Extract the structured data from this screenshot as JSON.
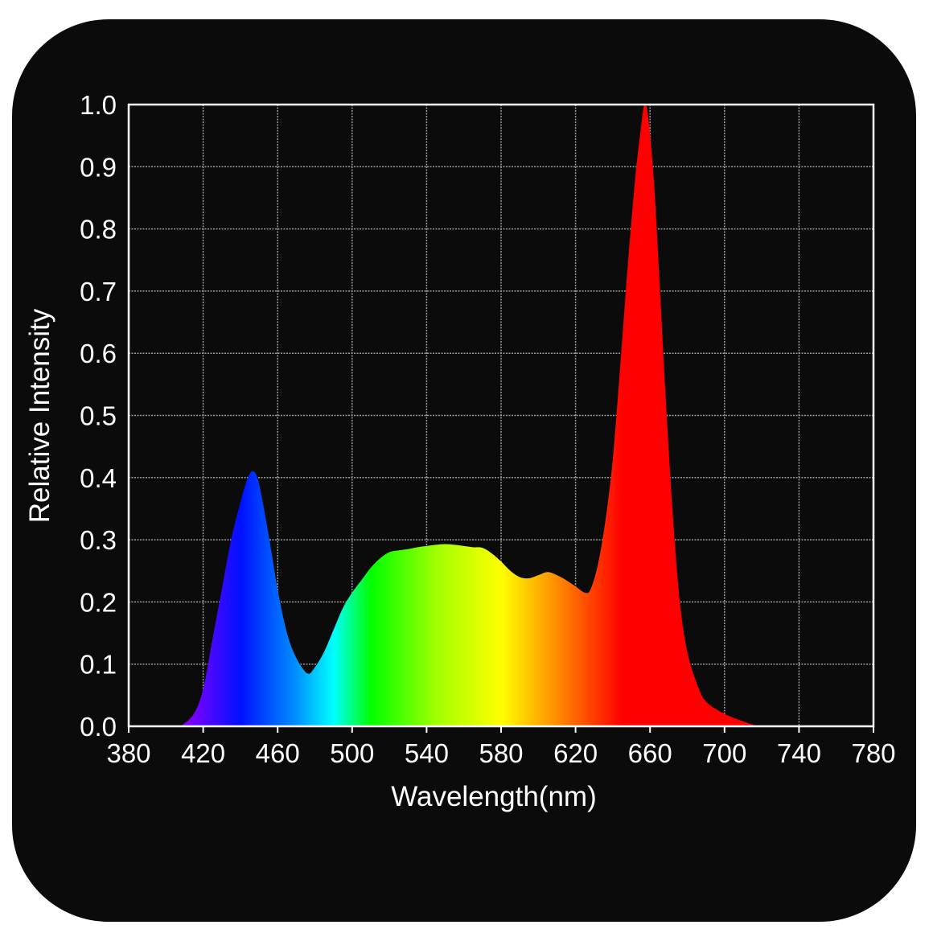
{
  "chart_data": {
    "type": "area",
    "title": "",
    "xlabel": "Wavelength(nm)",
    "ylabel": "Relative Intensity",
    "xlim": [
      380,
      780
    ],
    "ylim": [
      0,
      1.0
    ],
    "xticks": [
      380,
      420,
      460,
      500,
      540,
      580,
      620,
      660,
      700,
      740,
      780
    ],
    "yticks": [
      "0.0",
      "0.1",
      "0.2",
      "0.3",
      "0.4",
      "0.5",
      "0.6",
      "0.7",
      "0.8",
      "0.9",
      "1.0"
    ],
    "grid": true,
    "background": "#0b0b0b",
    "fill": "visible-spectrum gradient",
    "gradient_stops": [
      {
        "nm": 410,
        "color": "#8a00ff"
      },
      {
        "nm": 440,
        "color": "#0010ff"
      },
      {
        "nm": 470,
        "color": "#0090ff"
      },
      {
        "nm": 490,
        "color": "#00ffff"
      },
      {
        "nm": 510,
        "color": "#00ff00"
      },
      {
        "nm": 545,
        "color": "#a0ff00"
      },
      {
        "nm": 580,
        "color": "#ffff00"
      },
      {
        "nm": 610,
        "color": "#ff8c00"
      },
      {
        "nm": 645,
        "color": "#ff0000"
      }
    ],
    "series": [
      {
        "x": [
          408,
          415,
          420,
          425,
          430,
          435,
          440,
          444,
          447,
          450,
          455,
          460,
          465,
          470,
          476,
          480,
          485,
          490,
          495,
          500,
          505,
          510,
          515,
          520,
          525,
          530,
          535,
          540,
          550,
          560,
          565,
          570,
          575,
          580,
          585,
          590,
          595,
          600,
          605,
          610,
          615,
          620,
          625,
          628,
          632,
          636,
          640,
          644,
          648,
          652,
          655,
          657,
          659,
          662,
          665,
          668,
          672,
          676,
          680,
          685,
          690,
          700,
          710,
          718
        ],
        "y": [
          0,
          0.02,
          0.06,
          0.14,
          0.22,
          0.3,
          0.36,
          0.4,
          0.41,
          0.39,
          0.31,
          0.22,
          0.15,
          0.11,
          0.085,
          0.095,
          0.12,
          0.155,
          0.19,
          0.215,
          0.235,
          0.255,
          0.27,
          0.28,
          0.283,
          0.285,
          0.288,
          0.29,
          0.293,
          0.29,
          0.288,
          0.287,
          0.278,
          0.265,
          0.25,
          0.24,
          0.238,
          0.243,
          0.248,
          0.243,
          0.235,
          0.225,
          0.215,
          0.22,
          0.26,
          0.33,
          0.43,
          0.58,
          0.74,
          0.88,
          0.96,
          1.0,
          0.98,
          0.88,
          0.72,
          0.55,
          0.35,
          0.2,
          0.12,
          0.07,
          0.04,
          0.02,
          0.008,
          0
        ]
      }
    ]
  }
}
